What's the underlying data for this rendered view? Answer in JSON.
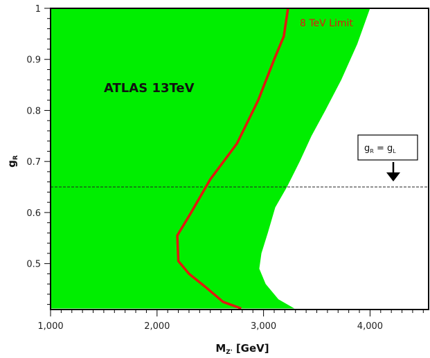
{
  "chart_data": {
    "type": "area",
    "x_axis": {
      "label_main": "M",
      "label_sub": "Z'",
      "label_unit": "[GeV]",
      "range": [
        1000,
        4550
      ],
      "ticks": [
        1000,
        2000,
        3000,
        4000
      ],
      "tick_labels": [
        "1,000",
        "2,000",
        "3,000",
        "4,000"
      ]
    },
    "y_axis": {
      "label_main": "g",
      "label_sub": "R",
      "range": [
        0.41,
        1.0
      ],
      "ticks": [
        0.5,
        0.6,
        0.7,
        0.8,
        0.9,
        1.0
      ],
      "tick_labels": [
        "0.5",
        "0.6",
        "0.7",
        "0.8",
        "0.9",
        "1"
      ]
    },
    "grid": false,
    "annotation_title": "ATLAS 13TeV",
    "excluded_region": {
      "color": "#00ee00",
      "boundary": [
        {
          "x": 3290,
          "y": 0.412
        },
        {
          "x": 3140,
          "y": 0.43
        },
        {
          "x": 3020,
          "y": 0.46
        },
        {
          "x": 2960,
          "y": 0.49
        },
        {
          "x": 2980,
          "y": 0.52
        },
        {
          "x": 3040,
          "y": 0.56
        },
        {
          "x": 3110,
          "y": 0.61
        },
        {
          "x": 3220,
          "y": 0.65
        },
        {
          "x": 3340,
          "y": 0.7
        },
        {
          "x": 3450,
          "y": 0.75
        },
        {
          "x": 3580,
          "y": 0.8
        },
        {
          "x": 3730,
          "y": 0.86
        },
        {
          "x": 3880,
          "y": 0.93
        },
        {
          "x": 4000,
          "y": 1.0
        }
      ]
    },
    "series": [
      {
        "name": "8 TeV Limit",
        "color": "#e0190f",
        "points": [
          {
            "x": 2790,
            "y": 0.412
          },
          {
            "x": 2620,
            "y": 0.425
          },
          {
            "x": 2450,
            "y": 0.455
          },
          {
            "x": 2300,
            "y": 0.48
          },
          {
            "x": 2200,
            "y": 0.505
          },
          {
            "x": 2190,
            "y": 0.555
          },
          {
            "x": 2320,
            "y": 0.6
          },
          {
            "x": 2500,
            "y": 0.665
          },
          {
            "x": 2750,
            "y": 0.735
          },
          {
            "x": 2950,
            "y": 0.82
          },
          {
            "x": 3100,
            "y": 0.9
          },
          {
            "x": 3190,
            "y": 0.945
          },
          {
            "x": 3230,
            "y": 1.0
          }
        ]
      }
    ],
    "reference_line": {
      "y": 0.65,
      "style": "dashed",
      "label_main": "g",
      "label_sub": "R",
      "label_eq": " = ",
      "label_main2": "g",
      "label_sub2": "L"
    }
  }
}
